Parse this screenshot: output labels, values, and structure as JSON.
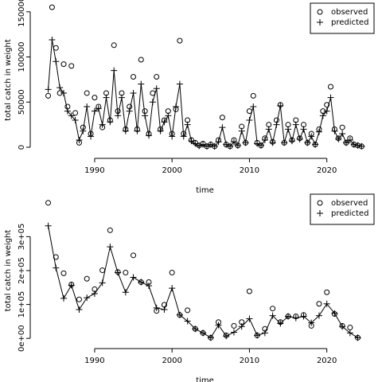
{
  "chart_data": [
    {
      "type": "line",
      "xlabel": "time",
      "ylabel": "total catch in weight",
      "legend": "topright",
      "xlim": [
        1982.4,
        2026.1
      ],
      "xticks": [
        1990,
        2000,
        2010,
        2020
      ],
      "ylim": [
        -7000,
        156000
      ],
      "yticks": [
        0,
        50000,
        100000,
        150000
      ],
      "x": [
        1984,
        1984.5,
        1985,
        1985.5,
        1986,
        1986.5,
        1987,
        1987.5,
        1988,
        1988.5,
        1989,
        1989.5,
        1990,
        1990.5,
        1991,
        1991.5,
        1992,
        1992.5,
        1993,
        1993.5,
        1994,
        1994.5,
        1995,
        1995.5,
        1996,
        1996.5,
        1997,
        1997.5,
        1998,
        1998.5,
        1999,
        1999.5,
        2000,
        2000.5,
        2001,
        2001.5,
        2002,
        2002.5,
        2003,
        2003.5,
        2004,
        2004.5,
        2005,
        2005.5,
        2006,
        2006.5,
        2007,
        2007.5,
        2008,
        2008.5,
        2009,
        2009.5,
        2010,
        2010.5,
        2011,
        2011.5,
        2012,
        2012.5,
        2013,
        2013.5,
        2014,
        2014.5,
        2015,
        2015.5,
        2016,
        2016.5,
        2017,
        2017.5,
        2018,
        2018.5,
        2019,
        2019.5,
        2020,
        2020.5,
        2021,
        2021.5,
        2022,
        2022.5,
        2023,
        2023.5,
        2024,
        2024.5
      ],
      "series": [
        {
          "name": "observed",
          "color": "#000000",
          "marker": "circle",
          "line": false,
          "values": [
            57000,
            155000,
            110000,
            60000,
            92000,
            45000,
            90000,
            38000,
            5000,
            22000,
            60000,
            15000,
            55000,
            45000,
            22000,
            60000,
            30000,
            113000,
            40000,
            60000,
            20000,
            45000,
            78000,
            20000,
            97000,
            40000,
            15000,
            60000,
            78000,
            20000,
            30000,
            40000,
            15000,
            42000,
            118000,
            15000,
            30000,
            8000,
            5000,
            2000,
            4000,
            1000,
            3000,
            1000,
            8000,
            33000,
            3000,
            1000,
            8000,
            2000,
            23000,
            5000,
            40000,
            57000,
            5000,
            2000,
            10000,
            25000,
            6000,
            30000,
            47000,
            5000,
            25000,
            8000,
            30000,
            10000,
            25000,
            5000,
            15000,
            3000,
            20000,
            40000,
            47000,
            67000,
            20000,
            10000,
            22000,
            5000,
            10000,
            3000,
            2000,
            1000
          ]
        },
        {
          "name": "predicted",
          "color": "#000000",
          "marker": "plus",
          "line": true,
          "values": [
            64000,
            119000,
            95000,
            66000,
            60000,
            40000,
            35000,
            30000,
            8000,
            18000,
            45000,
            12000,
            40000,
            43000,
            25000,
            55000,
            28000,
            85000,
            35000,
            55000,
            18000,
            40000,
            60000,
            18000,
            70000,
            35000,
            13000,
            50000,
            65000,
            18000,
            28000,
            35000,
            12000,
            45000,
            70000,
            12000,
            25000,
            7000,
            4000,
            1500,
            3000,
            1000,
            3000,
            1000,
            6000,
            22000,
            3000,
            1000,
            6000,
            2000,
            18000,
            5000,
            30000,
            45000,
            4000,
            2000,
            8000,
            20000,
            5000,
            25000,
            46000,
            5000,
            20000,
            7000,
            25000,
            9000,
            20000,
            5000,
            12000,
            3000,
            17000,
            35000,
            40000,
            55000,
            18000,
            9000,
            15000,
            5000,
            8000,
            3000,
            2000,
            1000
          ]
        }
      ]
    },
    {
      "type": "line",
      "xlabel": "time",
      "ylabel": "total catch in weight",
      "legend": "topright",
      "xlim": [
        1982.4,
        2026.1
      ],
      "xticks": [
        1990,
        2000,
        2010,
        2020
      ],
      "ylim": [
        -16000,
        416000
      ],
      "yticks": [
        {
          "value": 0,
          "label": "0e+00"
        },
        {
          "value": 100000,
          "label": "1e+05"
        },
        {
          "value": 200000,
          "label": "2e+05"
        },
        {
          "value": 300000,
          "label": "3e+05"
        }
      ],
      "x": [
        1984,
        1985,
        1986,
        1987,
        1988,
        1989,
        1990,
        1991,
        1992,
        1993,
        1994,
        1995,
        1996,
        1997,
        1998,
        1999,
        2000,
        2001,
        2002,
        2003,
        2004,
        2005,
        2006,
        2007,
        2008,
        2009,
        2010,
        2011,
        2012,
        2013,
        2014,
        2015,
        2016,
        2017,
        2018,
        2019,
        2020,
        2021,
        2022,
        2023,
        2024
      ],
      "series": [
        {
          "name": "observed",
          "color": "#000000",
          "marker": "circle",
          "line": false,
          "values": [
            400000,
            240000,
            192000,
            159000,
            115000,
            176000,
            145000,
            201000,
            319000,
            196000,
            194000,
            245000,
            166000,
            166000,
            81000,
            99000,
            194000,
            69000,
            83000,
            28000,
            16000,
            2000,
            48000,
            9000,
            37000,
            48000,
            139000,
            9000,
            28000,
            88000,
            48000,
            65000,
            65000,
            69000,
            37000,
            102000,
            136000,
            72000,
            37000,
            32000,
            2000
          ]
        },
        {
          "name": "predicted",
          "color": "#000000",
          "marker": "plus",
          "line": true,
          "values": [
            332000,
            208000,
            118000,
            157000,
            85000,
            120000,
            132000,
            164000,
            270000,
            194000,
            136000,
            180000,
            166000,
            155000,
            90000,
            85000,
            148000,
            69000,
            51000,
            28000,
            16000,
            2000,
            39000,
            7000,
            18000,
            35000,
            58000,
            9000,
            16000,
            67000,
            44000,
            65000,
            60000,
            65000,
            46000,
            67000,
            102000,
            74000,
            35000,
            16000,
            2000
          ]
        }
      ]
    }
  ]
}
